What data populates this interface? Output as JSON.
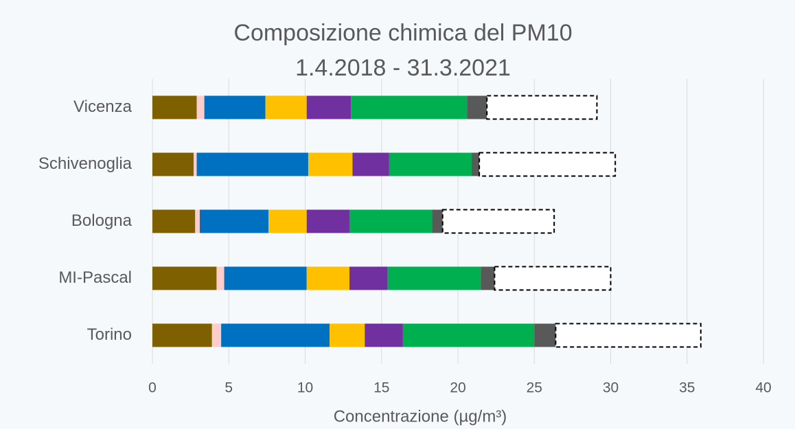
{
  "chart_data": {
    "type": "stacked_barh",
    "title": "Composizione chimica del PM10",
    "subtitle": "1.4.2018 - 31.3.2021",
    "x_label": "Concentrazione  (µg/m³)",
    "categories": [
      "Vicenza",
      "Schivenoglia",
      "Bologna",
      "MI-Pascal",
      "Torino"
    ],
    "series": [
      {
        "color": "#7f6000",
        "values": [
          2.9,
          2.7,
          2.8,
          4.2,
          3.9
        ]
      },
      {
        "color": "#ffcccc",
        "values": [
          0.5,
          0.2,
          0.3,
          0.5,
          0.6
        ]
      },
      {
        "color": "#0070c0",
        "values": [
          4.0,
          7.3,
          4.5,
          5.4,
          7.1
        ]
      },
      {
        "color": "#ffc000",
        "values": [
          2.7,
          2.9,
          2.5,
          2.8,
          2.3
        ]
      },
      {
        "color": "#7030a0",
        "values": [
          2.9,
          2.4,
          2.8,
          2.5,
          2.5
        ]
      },
      {
        "color": "#00b050",
        "values": [
          7.6,
          5.4,
          5.4,
          6.1,
          8.6
        ]
      },
      {
        "color": "#595959",
        "values": [
          1.3,
          0.5,
          0.7,
          0.9,
          1.4
        ]
      },
      {
        "color": "#ffffff",
        "line_style": "dashed",
        "values": [
          7.2,
          8.9,
          7.3,
          7.6,
          9.5
        ]
      }
    ],
    "xlim": [
      0,
      40
    ],
    "xticks": [
      0,
      5,
      10,
      15,
      20,
      25,
      30,
      35,
      40
    ],
    "grid": true
  }
}
